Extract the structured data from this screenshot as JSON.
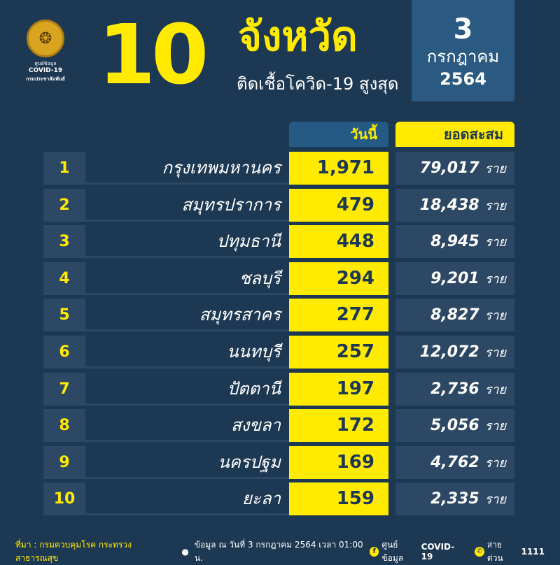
{
  "logo": {
    "line1": "ศูนย์ข้อมูล",
    "line2": "COVID-19",
    "line3": "กรมประชาสัมพันธ์"
  },
  "header": {
    "big_number": "10",
    "title": "จังหวัด",
    "subtitle": "ติดเชื้อโควิด-19 สูงสุด"
  },
  "date": {
    "day": "3",
    "month": "กรกฎาคม",
    "year": "2564"
  },
  "columns": {
    "today": "วันนี้",
    "total": "ยอดสะสม"
  },
  "unit": "ราย",
  "rows": [
    {
      "rank": "1",
      "province": "กรุงเทพมหานคร",
      "today": "1,971",
      "total": "79,017"
    },
    {
      "rank": "2",
      "province": "สมุทรปราการ",
      "today": "479",
      "total": "18,438"
    },
    {
      "rank": "3",
      "province": "ปทุมธานี",
      "today": "448",
      "total": "8,945"
    },
    {
      "rank": "4",
      "province": "ชลบุรี",
      "today": "294",
      "total": "9,201"
    },
    {
      "rank": "5",
      "province": "สมุทรสาคร",
      "today": "277",
      "total": "8,827"
    },
    {
      "rank": "6",
      "province": "นนทบุรี",
      "today": "257",
      "total": "12,072"
    },
    {
      "rank": "7",
      "province": "ปัตตานี",
      "today": "197",
      "total": "2,736"
    },
    {
      "rank": "8",
      "province": "สงขลา",
      "today": "172",
      "total": "5,056"
    },
    {
      "rank": "9",
      "province": "นครปฐม",
      "today": "169",
      "total": "4,762"
    },
    {
      "rank": "10",
      "province": "ยะลา",
      "today": "159",
      "total": "2,335"
    }
  ],
  "footer": {
    "source": "ที่มา : กรมควบคุมโรค กระทรวงสาธารณสุข",
    "data_time": "ข้อมูล ณ วันที่ 3 กรกฎาคม 2564 เวลา 01:00 น.",
    "facebook": "ศูนย์ข้อมูล",
    "facebook_bold": "COVID-19",
    "hotline": "สายด่วน",
    "hotline_number": "1111"
  },
  "colors": {
    "background": "#1d3852",
    "accent": "#ffea00",
    "box": "#2d4864",
    "date_box": "#2a5a82"
  }
}
